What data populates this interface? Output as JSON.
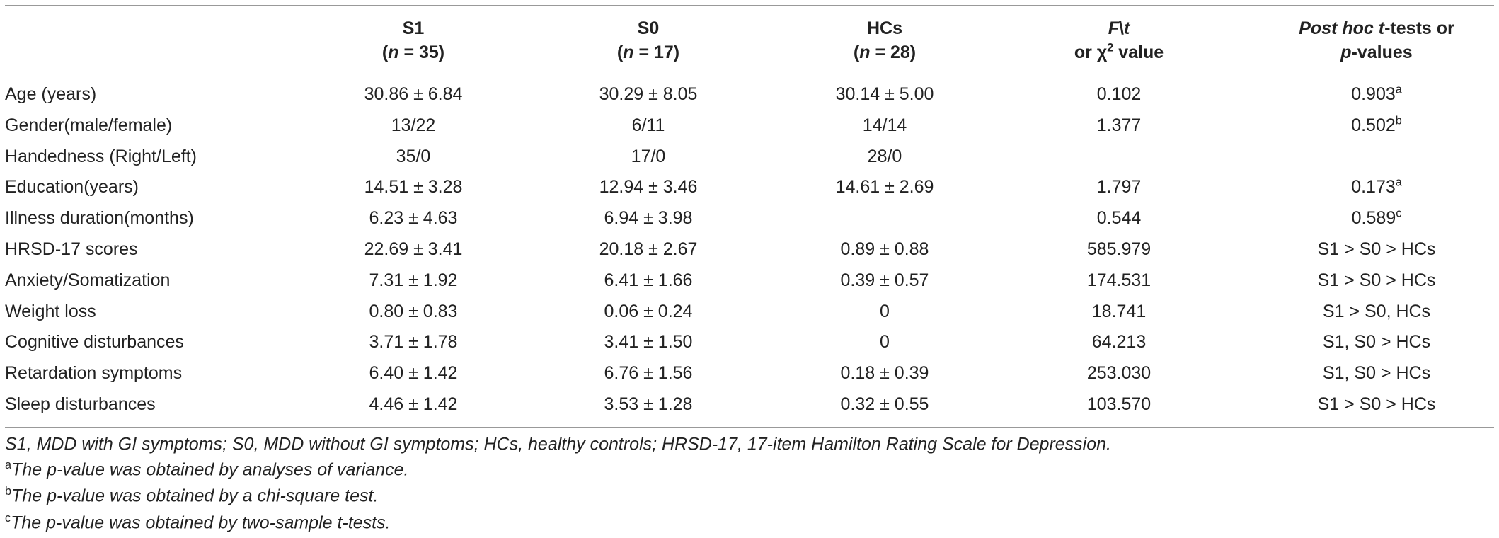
{
  "table": {
    "header": [
      [
        [
          {
            "text": "S1"
          }
        ],
        [
          {
            "text": "("
          },
          {
            "text": "n",
            "italic": true
          },
          {
            "text": " = 35)"
          }
        ]
      ],
      [
        [
          {
            "text": "S0"
          }
        ],
        [
          {
            "text": "("
          },
          {
            "text": "n",
            "italic": true
          },
          {
            "text": " = 17)"
          }
        ]
      ],
      [
        [
          {
            "text": "HCs"
          }
        ],
        [
          {
            "text": "("
          },
          {
            "text": "n",
            "italic": true
          },
          {
            "text": " = 28)"
          }
        ]
      ],
      [
        [
          {
            "text": "F",
            "italic": true
          },
          {
            "text": "\\"
          },
          {
            "text": "t",
            "italic": true
          }
        ],
        [
          {
            "text": "or χ"
          },
          {
            "text": "2",
            "sup": true
          },
          {
            "text": " value"
          }
        ]
      ],
      [
        [
          {
            "text": "Post hoc",
            "italic": true
          },
          {
            "text": " "
          },
          {
            "text": "t",
            "italic": true
          },
          {
            "text": "-tests or"
          }
        ],
        [
          {
            "text": "p",
            "italic": true
          },
          {
            "text": "-values"
          }
        ]
      ]
    ],
    "rows": [
      [
        "Age (years)",
        "30.86 ± 6.84",
        "30.29 ± 8.05",
        "30.14 ± 5.00",
        "0.102",
        {
          "text": "0.903",
          "sup": "a"
        }
      ],
      [
        "Gender(male/female)",
        "13/22",
        "6/11",
        "14/14",
        "1.377",
        {
          "text": "0.502",
          "sup": "b"
        }
      ],
      [
        "Handedness (Right/Left)",
        "35/0",
        "17/0",
        "28/0",
        null,
        null
      ],
      [
        "Education(years)",
        "14.51 ± 3.28",
        "12.94 ± 3.46",
        "14.61 ± 2.69",
        "1.797",
        {
          "text": "0.173",
          "sup": "a"
        }
      ],
      [
        "Illness duration(months)",
        "6.23 ± 4.63",
        "6.94 ± 3.98",
        null,
        "0.544",
        {
          "text": "0.589",
          "sup": "c"
        }
      ],
      [
        "HRSD-17 scores",
        "22.69 ± 3.41",
        "20.18 ± 2.67",
        "0.89 ± 0.88",
        "585.979",
        "S1 > S0 > HCs"
      ],
      [
        "Anxiety/Somatization",
        "7.31 ± 1.92",
        "6.41 ± 1.66",
        "0.39 ± 0.57",
        "174.531",
        "S1 > S0 > HCs"
      ],
      [
        "Weight loss",
        "0.80 ± 0.83",
        "0.06 ± 0.24",
        "0",
        "18.741",
        "S1 > S0, HCs"
      ],
      [
        "Cognitive disturbances",
        "3.71 ± 1.78",
        "3.41 ± 1.50",
        "0",
        "64.213",
        "S1, S0 > HCs"
      ],
      [
        "Retardation symptoms",
        "6.40 ± 1.42",
        "6.76 ± 1.56",
        "0.18 ± 0.39",
        "253.030",
        "S1, S0 > HCs"
      ],
      [
        "Sleep disturbances",
        "4.46 ± 1.42",
        "3.53 ± 1.28",
        "0.32 ± 0.55",
        "103.570",
        "S1 > S0 > HCs"
      ]
    ],
    "footnotes": [
      {
        "text": "S1, MDD with GI symptoms; S0, MDD without GI symptoms; HCs, healthy controls; HRSD-17, 17-item Hamilton Rating Scale for Depression."
      },
      {
        "mark": "a",
        "text": "The p-value was obtained by analyses of variance."
      },
      {
        "mark": "b",
        "text": "The p-value was obtained by a chi-square test."
      },
      {
        "mark": "c",
        "text": "The p-value was obtained by two-sample t-tests."
      }
    ]
  }
}
